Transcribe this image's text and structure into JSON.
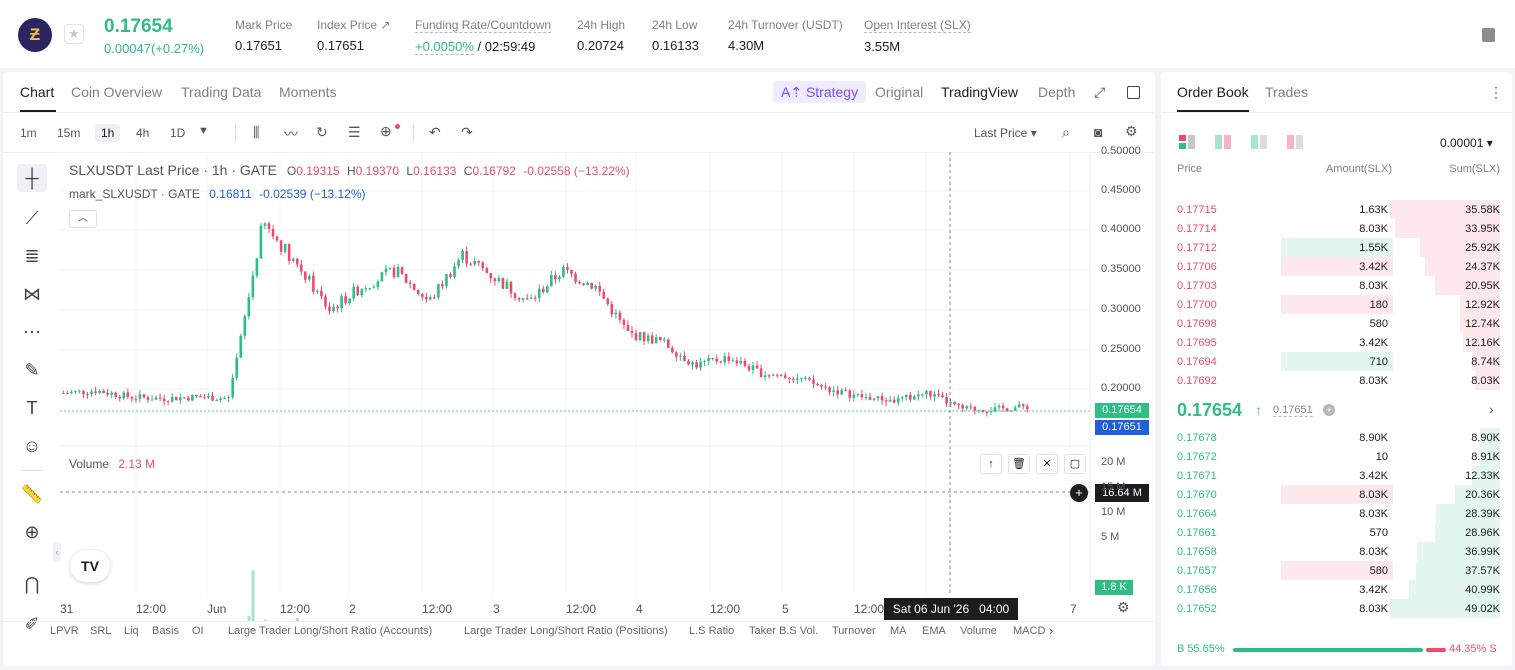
{
  "header": {
    "logo_text": "Ƶ",
    "last_price": "0.17654",
    "change": "0.00047(+0.27%)",
    "stats": [
      {
        "label": "Mark Price",
        "value": "0.17651"
      },
      {
        "label": "Index Price ↗",
        "value": "0.17651"
      },
      {
        "label": "Funding Rate/Countdown",
        "value": "+0.0050%",
        "value2": "/ 02:59:49"
      },
      {
        "label": "24h High",
        "value": "0.20724"
      },
      {
        "label": "24h Low",
        "value": "0.16133"
      },
      {
        "label": "24h Turnover (USDT)",
        "value": "4.30M"
      },
      {
        "label": "Open Interest (SLX)",
        "value": "3.55M"
      }
    ]
  },
  "chart_tabs": {
    "chart": "Chart",
    "coin": "Coin Overview",
    "trading": "Trading Data",
    "moments": "Moments",
    "strategy": "A⇡ Strategy",
    "original": "Original",
    "tradingview": "TradingView",
    "depth": "Depth"
  },
  "timeframes": [
    "1m",
    "15m",
    "1h",
    "4h",
    "1D"
  ],
  "active_timeframe": "1h",
  "toolbar": {
    "last_price": "Last Price"
  },
  "legend": {
    "symbol": "SLXUSDT Last Price · 1h · GATE",
    "o_label": "O",
    "o": "0.19315",
    "h_label": "H",
    "h": "0.19370",
    "l_label": "L",
    "l": "0.16133",
    "c_label": "C",
    "c": "0.16792",
    "chg": "-0.02558 (−13.22%)",
    "mark_name": "mark_SLXUSDT · GATE",
    "mark_val": "0.16811",
    "mark_chg": "-0.02539 (−13.12%)"
  },
  "volume_legend": {
    "name": "Volume",
    "value": "2.13 M"
  },
  "price_axis": [
    "0.50000",
    "0.45000",
    "0.40000",
    "0.35000",
    "0.30000",
    "0.25000",
    "0.20000"
  ],
  "price_tags": {
    "last": "0.17654",
    "mark": "0.17651"
  },
  "volume_axis": [
    "20 M",
    "15 M",
    "10 M",
    "5 M"
  ],
  "volume_tags": {
    "cursor": "16.64 M",
    "last": "1.8 K"
  },
  "time_axis": [
    "31",
    "12:00",
    "Jun",
    "12:00",
    "2",
    "12:00",
    "3",
    "12:00",
    "4",
    "12:00",
    "5",
    "12:00",
    "7"
  ],
  "crosshair_time": "Sat 06 Jun '26   04:00",
  "indicators": [
    "LPVR",
    "SRL",
    "Liq",
    "Basis",
    "OI",
    "Large Trader Long/Short Ratio (Accounts)",
    "Large Trader Long/Short Ratio (Positions)",
    "L.S Ratio",
    "Taker B.S Vol.",
    "Turnover",
    "MA",
    "EMA",
    "Volume",
    "MACD"
  ],
  "chart_data": {
    "type": "candlestick",
    "x": [
      "31",
      "12:00",
      "Jun",
      "12:00",
      "2",
      "12:00",
      "3",
      "12:00",
      "4",
      "12:00",
      "5",
      "12:00",
      "6",
      "7"
    ],
    "ylim": [
      0.16,
      0.5
    ],
    "series_close": [
      0.195,
      0.198,
      0.19,
      0.188,
      0.19,
      0.188,
      0.41,
      0.36,
      0.3,
      0.33,
      0.35,
      0.31,
      0.37,
      0.34,
      0.31,
      0.35,
      0.33,
      0.27,
      0.26,
      0.23,
      0.24,
      0.22,
      0.215,
      0.2,
      0.19,
      0.185,
      0.195,
      0.175,
      0.174,
      0.178
    ],
    "last": 0.17654,
    "volume_ylim": [
      0,
      20000000
    ],
    "volume_max": "2.13 M"
  },
  "orderbook": {
    "tab_book": "Order Book",
    "tab_trades": "Trades",
    "precision": "0.00001",
    "col_price": "Price",
    "col_amount": "Amount(SLX)",
    "col_sum": "Sum(SLX)",
    "asks": [
      {
        "p": "0.17715",
        "a": "1.63K",
        "s": "35.58K",
        "pct": 1.0
      },
      {
        "p": "0.17714",
        "a": "8.03K",
        "s": "33.95K",
        "pct": 0.95
      },
      {
        "p": "0.17712",
        "a": "1.55K",
        "s": "25.92K",
        "pct": 0.73,
        "hl": true
      },
      {
        "p": "0.17706",
        "a": "3.42K",
        "s": "24.37K",
        "pct": 0.68,
        "hl": true
      },
      {
        "p": "0.17703",
        "a": "8.03K",
        "s": "20.95K",
        "pct": 0.59
      },
      {
        "p": "0.17700",
        "a": "180",
        "s": "12.92K",
        "pct": 0.36,
        "hl": true
      },
      {
        "p": "0.17698",
        "a": "580",
        "s": "12.74K",
        "pct": 0.36
      },
      {
        "p": "0.17695",
        "a": "3.42K",
        "s": "12.16K",
        "pct": 0.34
      },
      {
        "p": "0.17694",
        "a": "710",
        "s": "8.74K",
        "pct": 0.25,
        "hl": true
      },
      {
        "p": "0.17692",
        "a": "8.03K",
        "s": "8.03K",
        "pct": 0.23
      }
    ],
    "mid_price": "0.17654",
    "mid_arrow": "↑",
    "mid_mark": "0.17651",
    "bids": [
      {
        "p": "0.17678",
        "a": "8.90K",
        "s": "8.90K",
        "pct": 0.18
      },
      {
        "p": "0.17672",
        "a": "10",
        "s": "8.91K",
        "pct": 0.18
      },
      {
        "p": "0.17671",
        "a": "3.42K",
        "s": "12.33K",
        "pct": 0.25
      },
      {
        "p": "0.17670",
        "a": "8.03K",
        "s": "20.36K",
        "pct": 0.41,
        "hl": true
      },
      {
        "p": "0.17664",
        "a": "8.03K",
        "s": "28.39K",
        "pct": 0.58
      },
      {
        "p": "0.17661",
        "a": "570",
        "s": "28.96K",
        "pct": 0.59
      },
      {
        "p": "0.17658",
        "a": "8.03K",
        "s": "36.99K",
        "pct": 0.75
      },
      {
        "p": "0.17657",
        "a": "580",
        "s": "37.57K",
        "pct": 0.76,
        "hl": true
      },
      {
        "p": "0.17656",
        "a": "3.42K",
        "s": "40.99K",
        "pct": 0.83
      },
      {
        "p": "0.17652",
        "a": "8.03K",
        "s": "49.02K",
        "pct": 1.0
      }
    ],
    "ratio_b": "B 55.65%",
    "ratio_s": "44.35% S",
    "buy_pct": 55.65
  },
  "colors": {
    "up": "#2fbd85",
    "down": "#ec4c6b",
    "accent": "#7b4dff",
    "mark": "#1f5fd9"
  }
}
